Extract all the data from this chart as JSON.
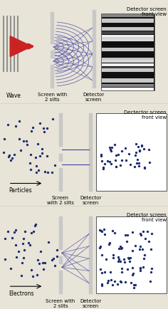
{
  "bg_color": "#e8e4d8",
  "dot_color": "#1a2a6e",
  "line_color": "#4040a0",
  "screen_color": "#c8c8c8",
  "arrow_color": "#cc2222",
  "sections": [
    {
      "label": "Wave",
      "bottom_labels": [
        "Screen with\n2 slits",
        "Detector\nscreen"
      ],
      "right_label": "Detector screen\nfront view",
      "type": "wave"
    },
    {
      "label": "Particles",
      "bottom_labels": [
        "Screen\nwith 2 slits",
        "Detector\nscreen"
      ],
      "right_label": "Dectector screen\nfront view",
      "type": "particles"
    },
    {
      "label": "Electrons",
      "bottom_labels": [
        "Screen with\n2 slits",
        "Detector\nscreen"
      ],
      "right_label": "Detector screen\nfront view",
      "type": "electrons"
    }
  ]
}
